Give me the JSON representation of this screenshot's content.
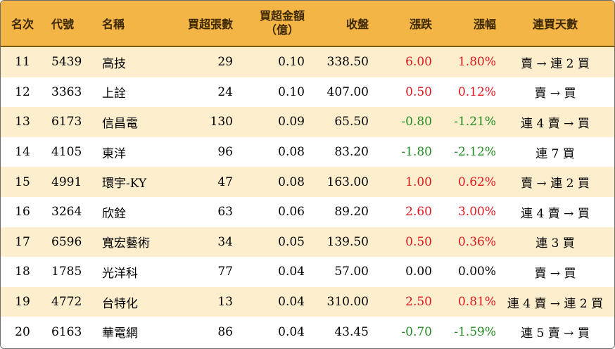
{
  "header": {
    "rank": "名次",
    "code": "代號",
    "name": "名稱",
    "lots": "買超張數",
    "amount_line1": "買超金額",
    "amount_line2": "（億）",
    "close": "收盤",
    "change": "漲跌",
    "pct": "漲幅",
    "days": "連買天數"
  },
  "colors": {
    "header_bg": "#f3b545",
    "stripe_bg": "#fdeecd",
    "up": "#e0141c",
    "down": "#1f8a1f"
  },
  "rows": [
    {
      "rank": "11",
      "code": "5439",
      "name": "高技",
      "lots": "29",
      "amount": "0.10",
      "close": "338.50",
      "change": "6.00",
      "pct": "1.80%",
      "days": "賣 → 連 2 買",
      "trend": "up"
    },
    {
      "rank": "12",
      "code": "3363",
      "name": "上詮",
      "lots": "24",
      "amount": "0.10",
      "close": "407.00",
      "change": "0.50",
      "pct": "0.12%",
      "days": "賣 → 買",
      "trend": "up"
    },
    {
      "rank": "13",
      "code": "6173",
      "name": "信昌電",
      "lots": "130",
      "amount": "0.09",
      "close": "65.50",
      "change": "-0.80",
      "pct": "-1.21%",
      "days": "連 4 賣 → 買",
      "trend": "down"
    },
    {
      "rank": "14",
      "code": "4105",
      "name": "東洋",
      "lots": "96",
      "amount": "0.08",
      "close": "83.20",
      "change": "-1.80",
      "pct": "-2.12%",
      "days": "連 7 買",
      "trend": "down"
    },
    {
      "rank": "15",
      "code": "4991",
      "name": "環宇-KY",
      "lots": "47",
      "amount": "0.08",
      "close": "163.00",
      "change": "1.00",
      "pct": "0.62%",
      "days": "賣 → 連 2 買",
      "trend": "up"
    },
    {
      "rank": "16",
      "code": "3264",
      "name": "欣銓",
      "lots": "63",
      "amount": "0.06",
      "close": "89.20",
      "change": "2.60",
      "pct": "3.00%",
      "days": "連 4 賣 → 買",
      "trend": "up"
    },
    {
      "rank": "17",
      "code": "6596",
      "name": "寬宏藝術",
      "lots": "34",
      "amount": "0.05",
      "close": "139.50",
      "change": "0.50",
      "pct": "0.36%",
      "days": "連 3 買",
      "trend": "up"
    },
    {
      "rank": "18",
      "code": "1785",
      "name": "光洋科",
      "lots": "77",
      "amount": "0.04",
      "close": "57.00",
      "change": "0.00",
      "pct": "0.00%",
      "days": "賣 → 買",
      "trend": "flat"
    },
    {
      "rank": "19",
      "code": "4772",
      "name": "台特化",
      "lots": "13",
      "amount": "0.04",
      "close": "310.00",
      "change": "2.50",
      "pct": "0.81%",
      "days": "連 4 賣 → 連 2 買",
      "trend": "up"
    },
    {
      "rank": "20",
      "code": "6163",
      "name": "華電網",
      "lots": "86",
      "amount": "0.04",
      "close": "43.45",
      "change": "-0.70",
      "pct": "-1.59%",
      "days": "連 5 賣 → 買",
      "trend": "down"
    }
  ]
}
